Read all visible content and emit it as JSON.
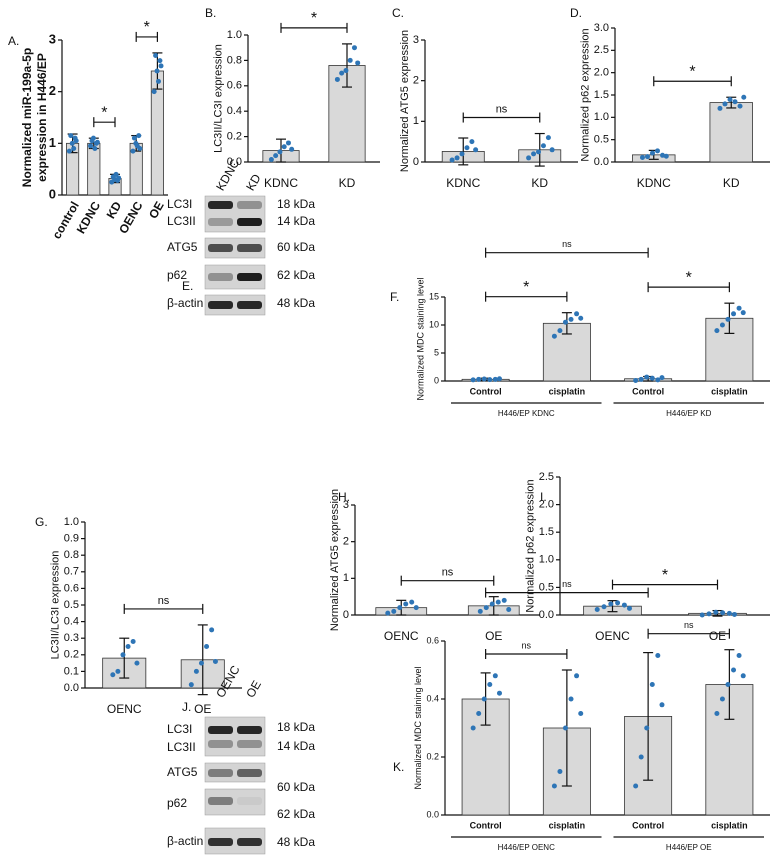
{
  "chart_data": [
    {
      "type": "bar",
      "panel": "A.",
      "ylabel": [
        "Normalized miR-199a-5p",
        "expression in H446/EP"
      ],
      "categories": [
        "control",
        "KDNC",
        "KD",
        "OENC",
        "OE"
      ],
      "values": [
        1.0,
        1.0,
        0.32,
        1.0,
        2.4
      ],
      "errors": [
        0.18,
        0.1,
        0.08,
        0.15,
        0.35
      ],
      "points": [
        [
          0.85,
          1.15,
          1.0,
          0.9,
          1.1,
          1.05
        ],
        [
          0.95,
          1.05,
          1.1,
          0.9,
          1.0,
          1.02
        ],
        [
          0.25,
          0.35,
          0.3,
          0.4,
          0.28,
          0.33
        ],
        [
          0.85,
          1.1,
          1.0,
          0.95,
          1.15,
          0.9
        ],
        [
          2.0,
          2.7,
          2.4,
          2.2,
          2.6,
          2.5
        ]
      ],
      "ylim": [
        0,
        3
      ],
      "yticks": [
        0,
        1,
        2,
        3
      ],
      "annotations": [
        {
          "label": "*",
          "between": [
            1,
            2
          ]
        },
        {
          "label": "*",
          "between": [
            3,
            4
          ]
        }
      ]
    },
    {
      "type": "bar",
      "panel": "B.",
      "ylabel": "LC3II/LC3I expression",
      "categories": [
        "KDNC",
        "KD"
      ],
      "values": [
        0.09,
        0.76
      ],
      "errors": [
        0.09,
        0.17
      ],
      "points": [
        [
          0.02,
          0.05,
          0.08,
          0.12,
          0.15,
          0.1
        ],
        [
          0.65,
          0.7,
          0.72,
          0.8,
          0.9,
          0.78
        ]
      ],
      "ylim": [
        0,
        1
      ],
      "yticks": [
        {
          "value": 0,
          "label": "0.0"
        },
        0.2,
        0.4,
        0.6,
        0.8,
        {
          "value": 1,
          "label": "1.0"
        }
      ],
      "annotations": [
        {
          "label": "*",
          "between": [
            0,
            1
          ]
        }
      ]
    },
    {
      "type": "bar",
      "panel": "C.",
      "ylabel": "Normalized ATG5 expression",
      "categories": [
        "KDNC",
        "KD"
      ],
      "values": [
        0.26,
        0.3
      ],
      "errors": [
        0.33,
        0.4
      ],
      "points": [
        [
          0.05,
          0.1,
          0.2,
          0.35,
          0.5,
          0.3
        ],
        [
          0.1,
          0.2,
          0.25,
          0.4,
          0.6,
          0.3
        ]
      ],
      "ylim": [
        0,
        3
      ],
      "yticks": [
        0,
        1,
        2,
        3
      ],
      "annotations": [
        {
          "label": "ns",
          "between": [
            0,
            1
          ]
        }
      ]
    },
    {
      "type": "bar",
      "panel": "D.",
      "ylabel": "Normalized p62 expression",
      "categories": [
        "KDNC",
        "KD"
      ],
      "values": [
        0.16,
        1.33
      ],
      "errors": [
        0.1,
        0.12
      ],
      "points": [
        [
          0.1,
          0.12,
          0.2,
          0.25,
          0.15,
          0.13
        ],
        [
          1.2,
          1.3,
          1.4,
          1.35,
          1.25,
          1.45
        ]
      ],
      "ylim": [
        0,
        3
      ],
      "yticks": [
        {
          "value": 0,
          "label": "0.0"
        },
        0.5,
        {
          "value": 1,
          "label": "1.0"
        },
        1.5,
        {
          "value": 2,
          "label": "2.0"
        },
        2.5,
        {
          "value": 3,
          "label": "3.0"
        }
      ],
      "annotations": [
        {
          "label": "*",
          "between": [
            0,
            1
          ]
        }
      ]
    },
    {
      "type": "bar",
      "panel": "F.",
      "ylabel": "Normalized MDC staining level",
      "categories": [
        "Control",
        "cisplatin",
        "Control",
        "cisplatin"
      ],
      "groups": [
        "H446/EP KDNC",
        "H446/EP KD"
      ],
      "values": [
        0.3,
        10.3,
        0.4,
        11.2
      ],
      "errors": [
        0.2,
        1.9,
        0.4,
        2.7
      ],
      "points": [
        [
          0.2,
          0.3,
          0.35,
          0.25,
          0.3,
          0.4
        ],
        [
          8,
          9,
          10.5,
          11,
          12,
          11.2
        ],
        [
          0.1,
          0.3,
          0.7,
          0.5,
          0.2,
          0.6
        ],
        [
          9,
          10,
          11,
          12,
          13,
          12.2
        ]
      ],
      "ylim": [
        0,
        15
      ],
      "yticks": [
        0,
        5,
        10,
        15
      ],
      "annotations": [
        {
          "label": "*",
          "between": [
            0,
            1
          ]
        },
        {
          "label": "*",
          "between": [
            2,
            3
          ]
        },
        {
          "label": "ns",
          "between": [
            0,
            2
          ]
        }
      ]
    },
    {
      "type": "bar",
      "panel": "G.",
      "ylabel": "LC3II/LC3I expression",
      "categories": [
        "OENC",
        "OE"
      ],
      "values": [
        0.18,
        0.17
      ],
      "errors": [
        0.12,
        0.21
      ],
      "points": [
        [
          0.08,
          0.1,
          0.2,
          0.25,
          0.28,
          0.15
        ],
        [
          0.02,
          0.1,
          0.15,
          0.25,
          0.35,
          0.16
        ]
      ],
      "ylim": [
        0,
        1
      ],
      "yticks": [
        {
          "value": 0,
          "label": "0.0"
        },
        0.1,
        0.2,
        0.3,
        0.4,
        0.5,
        0.6,
        0.7,
        0.8,
        0.9,
        {
          "value": 1,
          "label": "1.0"
        }
      ],
      "annotations": [
        {
          "label": "ns",
          "between": [
            0,
            1
          ]
        }
      ]
    },
    {
      "type": "bar",
      "panel": "H.",
      "ylabel": "Normalized ATG5 expression",
      "categories": [
        "OENC",
        "OE"
      ],
      "values": [
        0.2,
        0.25
      ],
      "errors": [
        0.2,
        0.25
      ],
      "points": [
        [
          0.05,
          0.1,
          0.2,
          0.3,
          0.35,
          0.2
        ],
        [
          0.1,
          0.2,
          0.3,
          0.35,
          0.4,
          0.15
        ]
      ],
      "ylim": [
        0,
        3
      ],
      "yticks": [
        0,
        1,
        2,
        3
      ],
      "annotations": [
        {
          "label": "ns",
          "between": [
            0,
            1
          ]
        }
      ]
    },
    {
      "type": "bar",
      "panel": "I.",
      "ylabel": "Normalized p62 expression",
      "categories": [
        "OENC",
        "OE"
      ],
      "values": [
        0.16,
        0.03
      ],
      "errors": [
        0.1,
        0.05
      ],
      "points": [
        [
          0.1,
          0.15,
          0.2,
          0.22,
          0.18,
          0.12
        ],
        [
          0.0,
          0.02,
          0.05,
          0.04,
          0.03,
          0.01
        ]
      ],
      "ylim": [
        0,
        2.5
      ],
      "yticks": [
        {
          "value": 0,
          "label": "0.0"
        },
        0.5,
        {
          "value": 1,
          "label": "1.0"
        },
        1.5,
        {
          "value": 2,
          "label": "2.0"
        },
        2.5
      ],
      "annotations": [
        {
          "label": "*",
          "between": [
            0,
            1
          ]
        }
      ]
    },
    {
      "type": "bar",
      "panel": "K.",
      "ylabel": "Normalized MDC staining level",
      "categories": [
        "Control",
        "cisplatin",
        "Control",
        "cisplatin"
      ],
      "groups": [
        "H446/EP OENC",
        "H446/EP OE"
      ],
      "values": [
        0.4,
        0.3,
        0.34,
        0.45
      ],
      "errors": [
        0.09,
        0.2,
        0.22,
        0.12
      ],
      "points": [
        [
          0.3,
          0.35,
          0.4,
          0.45,
          0.48,
          0.42
        ],
        [
          0.1,
          0.15,
          0.3,
          0.4,
          0.48,
          0.35
        ],
        [
          0.1,
          0.2,
          0.3,
          0.45,
          0.55,
          0.38
        ],
        [
          0.35,
          0.4,
          0.45,
          0.5,
          0.55,
          0.48
        ]
      ],
      "ylim": [
        0,
        0.6
      ],
      "yticks": [
        {
          "value": 0,
          "label": "0.0"
        },
        0.2,
        0.4,
        0.6
      ],
      "annotations": [
        {
          "label": "ns",
          "between": [
            0,
            1
          ]
        },
        {
          "label": "ns",
          "between": [
            2,
            3
          ]
        },
        {
          "label": "ns",
          "between": [
            0,
            2
          ]
        }
      ]
    }
  ],
  "blots": [
    {
      "panel": "E.",
      "lanes": [
        "KDNC",
        "KD"
      ],
      "proteins": [
        "LC3I",
        "LC3II",
        "ATG5",
        "p62",
        "β-actin"
      ],
      "sizes": [
        "18 kDa",
        "14 kDa",
        "60 kDa",
        "62 kDa",
        "48 kDa"
      ]
    },
    {
      "panel": "J.",
      "lanes": [
        "OENC",
        "OE"
      ],
      "proteins": [
        "LC3I",
        "LC3II",
        "ATG5",
        "p62",
        "β-actin"
      ],
      "sizes": [
        "18 kDa",
        "14 kDa",
        "60 kDa",
        "62 kDa",
        "48 kDa"
      ]
    }
  ]
}
